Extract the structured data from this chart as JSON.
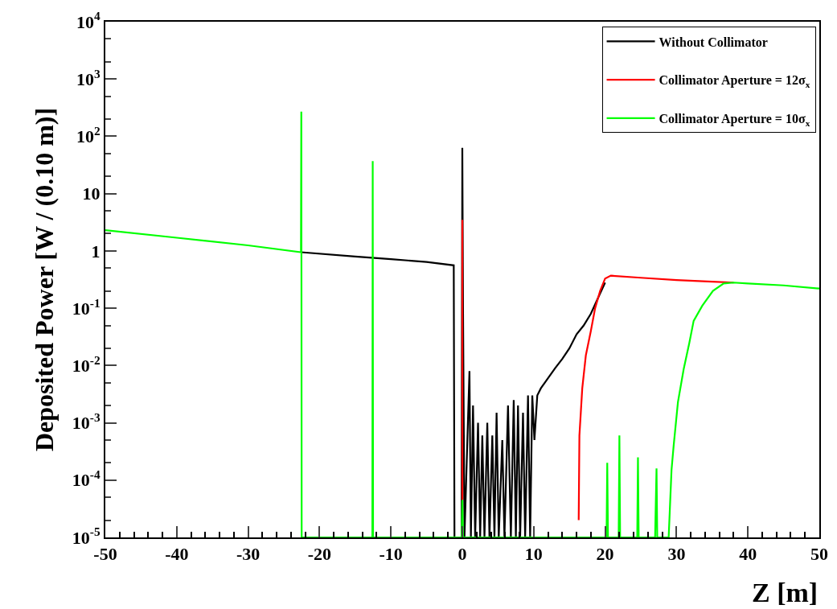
{
  "chart_data": {
    "type": "line",
    "xlabel": "Z [m]",
    "ylabel": "Deposited Power [W / (0.10 m)]",
    "log": "y",
    "xlim": [
      -50,
      50
    ],
    "xticks": [
      -50,
      -40,
      -30,
      -20,
      -10,
      0,
      10,
      20,
      30,
      40,
      50
    ],
    "ylim": [
      1e-05,
      10000
    ],
    "yticks": [
      {
        "value": 1e-05,
        "label": "10$^{-5}$"
      },
      {
        "value": 0.0001,
        "label": "10$^{-4}$"
      },
      {
        "value": 0.001,
        "label": "10$^{-3}$"
      },
      {
        "value": 0.01,
        "label": "10$^{-2}$"
      },
      {
        "value": 0.1,
        "label": "10$^{-1}$"
      },
      1,
      10,
      {
        "value": 100,
        "label": "10$^{2}$"
      },
      {
        "value": 1000,
        "label": "10$^{3}$"
      },
      {
        "value": 10000,
        "label": "10$^{4}$"
      }
    ],
    "legend": "top right",
    "series": [
      {
        "name": "Without Collimator",
        "color": "#000000",
        "x": [
          -22.6,
          -15,
          -10,
          -5,
          -1.2,
          -1.1,
          -0.1,
          0,
          0.1,
          0.3,
          1.0,
          1.2,
          1.5,
          1.8,
          2.2,
          2.5,
          2.8,
          3.1,
          3.5,
          3.8,
          4.2,
          4.5,
          4.8,
          5.1,
          5.6,
          5.9,
          6.4,
          6.8,
          7.2,
          7.5,
          7.8,
          8.1,
          8.5,
          8.8,
          9.2,
          9.5,
          9.8,
          10.1,
          10.5,
          11,
          12,
          13,
          14,
          15,
          16,
          17,
          18,
          19,
          20
        ],
        "values": [
          0.95,
          0.8,
          0.72,
          0.64,
          0.56,
          1e-05,
          1e-05,
          63,
          0.1,
          1e-05,
          0.008,
          1e-05,
          0.002,
          1e-05,
          0.001,
          1e-05,
          0.0006,
          1e-05,
          0.001,
          1e-05,
          0.0006,
          1e-05,
          0.0015,
          1e-05,
          0.0005,
          1e-05,
          0.002,
          1e-05,
          0.0025,
          1e-05,
          0.002,
          1e-05,
          0.0015,
          1e-05,
          0.003,
          1e-05,
          0.003,
          0.0005,
          0.003,
          0.004,
          0.006,
          0.009,
          0.013,
          0.02,
          0.035,
          0.05,
          0.08,
          0.15,
          0.28
        ]
      },
      {
        "name": "Collimator Aperture = 12σ$_{x}$",
        "color": "#ff0000",
        "x": [
          0,
          0,
          0.1,
          16.3,
          16.4,
          16.8,
          17.3,
          18,
          18.6,
          19.3,
          20,
          20.8,
          25,
          30,
          35,
          38
        ],
        "values": [
          4.5e-05,
          3.5,
          null,
          2e-05,
          0.0006,
          0.004,
          0.015,
          0.04,
          0.1,
          0.2,
          0.33,
          0.37,
          0.34,
          0.31,
          0.29,
          0.28
        ]
      },
      {
        "name": "Collimator Aperture = 10σ$_{x}$",
        "color": "#00ff00",
        "x": [
          -50,
          -40,
          -30,
          -22.6,
          -22.55,
          -22.5,
          -12.6,
          -12.55,
          -12.5,
          -0.1,
          0,
          0.1,
          20.2,
          20.3,
          20.4,
          21.9,
          22,
          22.1,
          24.5,
          24.6,
          24.7,
          27,
          27.2,
          27.3,
          28.9,
          29.3,
          29.6,
          30.2,
          31,
          31.8,
          32.4,
          33.6,
          35.1,
          36.6,
          38,
          40,
          45,
          50
        ],
        "values": [
          2.3,
          1.7,
          1.25,
          0.95,
          270,
          1e-05,
          1e-05,
          37,
          1e-05,
          1e-05,
          4.5e-05,
          1e-05,
          1e-05,
          0.0002,
          1e-05,
          1e-05,
          0.0006,
          1e-05,
          1e-05,
          0.00025,
          1e-05,
          1e-05,
          0.00016,
          1e-05,
          1e-05,
          0.00015,
          0.0004,
          0.0023,
          0.0086,
          0.025,
          0.06,
          0.11,
          0.2,
          0.27,
          0.28,
          0.27,
          0.25,
          0.22
        ]
      }
    ]
  }
}
